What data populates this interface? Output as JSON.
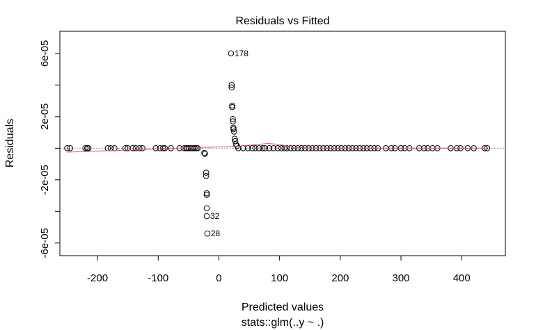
{
  "chart_data": {
    "type": "scatter",
    "title": "Residuals vs Fitted",
    "xlabel": "Predicted values",
    "xlabel2": "stats::glm(..y ~ .)",
    "ylabel": "Residuals",
    "xlim": [
      -262,
      472
    ],
    "ylim": [
      -6.8e-05,
      7.4e-05
    ],
    "x_ticks": [
      -200,
      -100,
      0,
      100,
      200,
      300,
      400
    ],
    "x_tick_labels": [
      "-200",
      "-100",
      "0",
      "100",
      "200",
      "300",
      "400"
    ],
    "y_ticks": [
      -6e-05,
      -4e-05,
      -2e-05,
      0,
      2e-05,
      4e-05,
      6e-05
    ],
    "y_tick_labels": [
      "-6e-05",
      "",
      "-2e-05",
      "",
      "2e-05",
      "",
      "6e-05"
    ],
    "grid": false,
    "zero_line": true,
    "smooth_color": "#DF536B",
    "zero_line_color": "#999999",
    "points": [
      {
        "x": -250,
        "y": 0
      },
      {
        "x": -245,
        "y": 0
      },
      {
        "x": -220,
        "y": 0
      },
      {
        "x": -217,
        "y": 0
      },
      {
        "x": -215,
        "y": 0
      },
      {
        "x": -183,
        "y": 0
      },
      {
        "x": -178,
        "y": 0
      },
      {
        "x": -172,
        "y": 0
      },
      {
        "x": -154,
        "y": 0
      },
      {
        "x": -150,
        "y": 0
      },
      {
        "x": -142,
        "y": 0
      },
      {
        "x": -137,
        "y": 0
      },
      {
        "x": -131,
        "y": 0
      },
      {
        "x": -126,
        "y": 0
      },
      {
        "x": -104,
        "y": 0
      },
      {
        "x": -97,
        "y": 0
      },
      {
        "x": -92,
        "y": 0
      },
      {
        "x": -89,
        "y": 0
      },
      {
        "x": -79,
        "y": 0
      },
      {
        "x": -65,
        "y": 0
      },
      {
        "x": -57,
        "y": 0
      },
      {
        "x": -54,
        "y": 0
      },
      {
        "x": -52,
        "y": 0
      },
      {
        "x": -49,
        "y": 0
      },
      {
        "x": -46,
        "y": 0
      },
      {
        "x": -43,
        "y": 0
      },
      {
        "x": -40,
        "y": 0
      },
      {
        "x": -37,
        "y": 0
      },
      {
        "x": -35,
        "y": 0
      },
      {
        "x": -24,
        "y": -3e-06
      },
      {
        "x": -23,
        "y": -3.5e-06
      },
      {
        "x": -21,
        "y": -1.55e-05
      },
      {
        "x": -21,
        "y": -1.75e-05
      },
      {
        "x": -20,
        "y": -2.85e-05
      },
      {
        "x": -20,
        "y": -2.95e-05
      },
      {
        "x": -20,
        "y": -3.8e-05
      },
      {
        "x": -20,
        "y": -4.3e-05
      },
      {
        "x": -19,
        "y": -5.4e-05
      },
      {
        "x": 20,
        "y": 6e-05
      },
      {
        "x": 21,
        "y": 4e-05
      },
      {
        "x": 21,
        "y": 3.85e-05
      },
      {
        "x": 22,
        "y": 2.7e-05
      },
      {
        "x": 22,
        "y": 2.6e-05
      },
      {
        "x": 23,
        "y": 1.85e-05
      },
      {
        "x": 23,
        "y": 1.7e-05
      },
      {
        "x": 24,
        "y": 1.3e-05
      },
      {
        "x": 24,
        "y": 1.2e-05
      },
      {
        "x": 25,
        "y": 1.05e-05
      },
      {
        "x": 26,
        "y": 6e-06
      },
      {
        "x": 27,
        "y": 4.5e-06
      },
      {
        "x": 28,
        "y": 2.5e-06
      },
      {
        "x": 30,
        "y": 1.5e-06
      },
      {
        "x": 32,
        "y": 0
      },
      {
        "x": 40,
        "y": 0
      },
      {
        "x": 48,
        "y": 0
      },
      {
        "x": 55,
        "y": 0
      },
      {
        "x": 60,
        "y": 0
      },
      {
        "x": 66,
        "y": 0
      },
      {
        "x": 72,
        "y": 0
      },
      {
        "x": 76,
        "y": 0
      },
      {
        "x": 83,
        "y": 0
      },
      {
        "x": 90,
        "y": 0
      },
      {
        "x": 97,
        "y": 0
      },
      {
        "x": 103,
        "y": 0
      },
      {
        "x": 108,
        "y": 0
      },
      {
        "x": 112,
        "y": 0
      },
      {
        "x": 118,
        "y": 0
      },
      {
        "x": 124,
        "y": 0
      },
      {
        "x": 130,
        "y": 0
      },
      {
        "x": 136,
        "y": 0
      },
      {
        "x": 142,
        "y": 0
      },
      {
        "x": 148,
        "y": 0
      },
      {
        "x": 154,
        "y": 0
      },
      {
        "x": 160,
        "y": 0
      },
      {
        "x": 166,
        "y": 0
      },
      {
        "x": 172,
        "y": 0
      },
      {
        "x": 178,
        "y": 0
      },
      {
        "x": 184,
        "y": 0
      },
      {
        "x": 190,
        "y": 0
      },
      {
        "x": 196,
        "y": 0
      },
      {
        "x": 202,
        "y": 0
      },
      {
        "x": 208,
        "y": 0
      },
      {
        "x": 214,
        "y": 0
      },
      {
        "x": 220,
        "y": 0
      },
      {
        "x": 226,
        "y": 0
      },
      {
        "x": 232,
        "y": 0
      },
      {
        "x": 238,
        "y": 0
      },
      {
        "x": 244,
        "y": 0
      },
      {
        "x": 250,
        "y": 0
      },
      {
        "x": 256,
        "y": 0
      },
      {
        "x": 262,
        "y": 0
      },
      {
        "x": 275,
        "y": 0
      },
      {
        "x": 284,
        "y": 0
      },
      {
        "x": 290,
        "y": 0
      },
      {
        "x": 300,
        "y": 0
      },
      {
        "x": 306,
        "y": 0
      },
      {
        "x": 314,
        "y": 0
      },
      {
        "x": 330,
        "y": 0
      },
      {
        "x": 338,
        "y": 0
      },
      {
        "x": 344,
        "y": 0
      },
      {
        "x": 352,
        "y": 0
      },
      {
        "x": 360,
        "y": 0
      },
      {
        "x": 382,
        "y": 0
      },
      {
        "x": 392,
        "y": 0
      },
      {
        "x": 398,
        "y": 0
      },
      {
        "x": 410,
        "y": 0
      },
      {
        "x": 420,
        "y": 0
      },
      {
        "x": 438,
        "y": 0
      },
      {
        "x": 442,
        "y": 0
      }
    ],
    "labeled_points": [
      {
        "x": 20,
        "y": 6e-05,
        "label": "178"
      },
      {
        "x": -20,
        "y": -4.3e-05,
        "label": "32"
      },
      {
        "x": -19,
        "y": -5.4e-05,
        "label": "28"
      }
    ],
    "smooth": [
      {
        "x": -250,
        "y": -2.5e-06
      },
      {
        "x": -200,
        "y": -1.8e-06
      },
      {
        "x": -150,
        "y": -1.2e-06
      },
      {
        "x": -100,
        "y": -5e-07
      },
      {
        "x": -50,
        "y": 3e-07
      },
      {
        "x": 0,
        "y": 8e-07
      },
      {
        "x": 30,
        "y": 1.2e-06
      },
      {
        "x": 60,
        "y": 2.2e-06
      },
      {
        "x": 80,
        "y": 3e-06
      },
      {
        "x": 100,
        "y": 2.4e-06
      },
      {
        "x": 120,
        "y": 6e-07
      },
      {
        "x": 160,
        "y": 0
      },
      {
        "x": 250,
        "y": 0
      },
      {
        "x": 350,
        "y": 0
      },
      {
        "x": 442,
        "y": 0
      }
    ]
  }
}
